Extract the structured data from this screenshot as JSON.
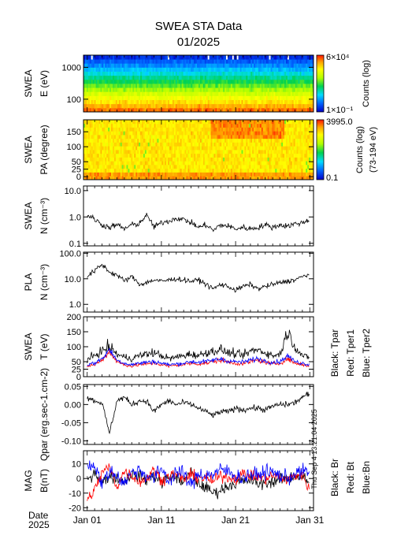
{
  "title": "SWEA STA Data",
  "subtitle": "01/2025",
  "timestamp": "Thu Sep  4 13:21:04 2025",
  "date_label": [
    "Date",
    "2025"
  ],
  "x_ticks": [
    {
      "day": 1,
      "label": "Jan 01"
    },
    {
      "day": 11,
      "label": "Jan 11"
    },
    {
      "day": 21,
      "label": "Jan 21"
    },
    {
      "day": 31,
      "label": "Jan 31"
    }
  ],
  "colorbar_energy": {
    "max_label": "6×10⁴",
    "min_label": "1×10⁻¹",
    "title": "Counts (log)"
  },
  "colorbar_pa": {
    "max_label": "3995.0",
    "min_label": "0.1",
    "title": "Counts (log)",
    "subtitle": "(73-194 eV)"
  },
  "legend_temp": [
    "Black: Tpar",
    "Red: Tper1",
    "Blue: Tper2"
  ],
  "legend_mag": [
    "Black: Br",
    "Red: Bt",
    "Blue:Bn"
  ],
  "colors": {
    "black": "#000000",
    "red": "#ff0000",
    "blue": "#0000ff"
  },
  "chart_data": [
    {
      "type": "heatmap",
      "ylabel": [
        "SWEA",
        "E (eV)"
      ],
      "yscale": "log",
      "ylim": [
        40,
        2400
      ],
      "y_ticks": [
        {
          "v": 100,
          "label": "100"
        },
        {
          "v": 1000,
          "label": "1000"
        }
      ],
      "xlim": [
        0.5,
        31.5
      ],
      "colorbar": "energy"
    },
    {
      "type": "heatmap",
      "ylabel": [
        "SWEA",
        "PA (degree)"
      ],
      "yscale": "linear",
      "ylim": [
        -10,
        190
      ],
      "y_ticks": [
        {
          "v": 0,
          "label": "0"
        },
        {
          "v": 25,
          "label": "25"
        },
        {
          "v": 50,
          "label": "50"
        },
        {
          "v": 100,
          "label": "100"
        },
        {
          "v": 150,
          "label": "150"
        }
      ],
      "xlim": [
        0.5,
        31.5
      ],
      "colorbar": "pa"
    },
    {
      "type": "line",
      "ylabel": [
        "SWEA",
        "N (cm⁻³)"
      ],
      "yscale": "log",
      "ylim": [
        0.08,
        15
      ],
      "y_ticks": [
        {
          "v": 0.1,
          "label": "0.1"
        },
        {
          "v": 1,
          "label": "1.0"
        },
        {
          "v": 10,
          "label": "10.0"
        }
      ],
      "xlim": [
        0.5,
        31.5
      ],
      "series": [
        {
          "color": "black",
          "x": [
            1,
            2,
            3,
            4,
            5,
            6,
            7,
            8,
            9,
            10,
            11,
            12,
            13,
            14,
            15,
            16,
            17,
            18,
            19,
            20,
            21,
            22,
            23,
            24,
            25,
            26,
            27,
            28,
            29,
            30,
            31
          ],
          "y": [
            1.2,
            0.8,
            0.5,
            0.4,
            0.5,
            0.35,
            0.5,
            0.55,
            1.1,
            0.4,
            0.6,
            0.7,
            0.9,
            0.8,
            0.6,
            0.4,
            0.5,
            0.3,
            0.5,
            0.45,
            0.35,
            0.4,
            0.35,
            0.4,
            0.5,
            0.4,
            0.5,
            0.45,
            0.55,
            0.6,
            0.8
          ],
          "noise": 0.25
        }
      ]
    },
    {
      "type": "line",
      "ylabel": [
        "PLA",
        "N (cm⁻³)"
      ],
      "yscale": "log",
      "ylim": [
        0.5,
        110
      ],
      "y_ticks": [
        {
          "v": 1,
          "label": "1.0"
        },
        {
          "v": 10,
          "label": "10.0"
        },
        {
          "v": 100,
          "label": "100.0"
        }
      ],
      "xlim": [
        0.5,
        31.5
      ],
      "series": [
        {
          "color": "black",
          "x": [
            1,
            2,
            3,
            4,
            5,
            6,
            7,
            8,
            9,
            10,
            11,
            12,
            13,
            14,
            15,
            16,
            17,
            18,
            19,
            20,
            21,
            22,
            23,
            24,
            25,
            26,
            27,
            28,
            29,
            30,
            31
          ],
          "y": [
            12,
            20,
            35,
            18,
            14,
            8,
            12,
            6,
            7,
            9,
            8,
            9,
            10,
            9,
            8,
            9,
            6,
            4,
            6,
            5,
            3.5,
            5,
            6,
            4,
            5,
            6,
            7,
            8,
            9,
            12,
            15
          ],
          "noise": 0.22
        }
      ]
    },
    {
      "type": "line",
      "ylabel": [
        "SWEA",
        "T (eV)"
      ],
      "yscale": "linear",
      "ylim": [
        0,
        200
      ],
      "y_ticks": [
        {
          "v": 0,
          "label": "0"
        },
        {
          "v": 25,
          "label": "25"
        },
        {
          "v": 50,
          "label": "50"
        },
        {
          "v": 100,
          "label": "100"
        },
        {
          "v": 150,
          "label": "150"
        },
        {
          "v": 200,
          "label": "200"
        }
      ],
      "xlim": [
        0.5,
        31.5
      ],
      "series": [
        {
          "color": "black",
          "x": [
            1,
            2,
            3,
            4,
            5,
            6,
            7,
            8,
            9,
            10,
            11,
            12,
            13,
            14,
            15,
            16,
            17,
            18,
            19,
            20,
            21,
            22,
            23,
            24,
            25,
            26,
            27,
            28,
            29,
            30,
            31
          ],
          "y": [
            55,
            70,
            85,
            100,
            75,
            65,
            60,
            70,
            75,
            80,
            70,
            60,
            65,
            70,
            75,
            70,
            80,
            85,
            90,
            80,
            75,
            70,
            85,
            90,
            80,
            70,
            75,
            150,
            100,
            70,
            60
          ],
          "noise": 0.18
        },
        {
          "color": "red",
          "x": [
            1,
            2,
            3,
            4,
            5,
            6,
            7,
            8,
            9,
            10,
            11,
            12,
            13,
            14,
            15,
            16,
            17,
            18,
            19,
            20,
            21,
            22,
            23,
            24,
            25,
            26,
            27,
            28,
            29,
            30,
            31
          ],
          "y": [
            35,
            40,
            55,
            85,
            50,
            40,
            35,
            40,
            42,
            45,
            40,
            35,
            38,
            40,
            45,
            42,
            45,
            50,
            55,
            48,
            45,
            42,
            50,
            55,
            48,
            42,
            45,
            60,
            45,
            40,
            35
          ],
          "noise": 0.15
        },
        {
          "color": "blue",
          "x": [
            1,
            2,
            3,
            4,
            5,
            6,
            7,
            8,
            9,
            10,
            11,
            12,
            13,
            14,
            15,
            16,
            17,
            18,
            19,
            20,
            21,
            22,
            23,
            24,
            25,
            26,
            27,
            28,
            29,
            30,
            31
          ],
          "y": [
            40,
            45,
            60,
            90,
            55,
            45,
            40,
            45,
            48,
            50,
            45,
            40,
            42,
            45,
            50,
            48,
            50,
            55,
            60,
            52,
            50,
            48,
            55,
            60,
            52,
            48,
            50,
            70,
            50,
            45,
            40
          ],
          "noise": 0.15
        }
      ]
    },
    {
      "type": "line",
      "ylabel": [
        "Qpar (erg.sec-1.cm-2)"
      ],
      "yscale": "linear",
      "ylim": [
        -0.11,
        0.055
      ],
      "y_ticks": [
        {
          "v": -0.1,
          "label": "-0.10"
        },
        {
          "v": -0.05,
          "label": "-0.05"
        },
        {
          "v": 0,
          "label": "0.00"
        },
        {
          "v": 0.05,
          "label": "0.05"
        }
      ],
      "xlim": [
        0.5,
        31.5
      ],
      "series": [
        {
          "color": "black",
          "x": [
            1,
            2,
            3,
            4,
            5,
            6,
            7,
            8,
            9,
            10,
            11,
            12,
            13,
            14,
            15,
            16,
            17,
            18,
            19,
            20,
            21,
            22,
            23,
            24,
            25,
            26,
            27,
            28,
            29,
            30,
            31
          ],
          "y": [
            0.02,
            0.01,
            0.005,
            -0.08,
            0.01,
            0.02,
            0.0,
            0.01,
            0.01,
            -0.02,
            0.0,
            0.01,
            0.0,
            0.005,
            0.0,
            -0.01,
            -0.02,
            -0.03,
            -0.02,
            -0.02,
            -0.01,
            -0.015,
            -0.01,
            -0.01,
            -0.015,
            -0.005,
            0.0,
            0.0,
            0.005,
            0.02,
            0.03
          ],
          "noise": 0.008,
          "additive": true
        }
      ]
    },
    {
      "type": "line",
      "ylabel": [
        "MAG",
        "B(nT)"
      ],
      "yscale": "linear",
      "ylim": [
        -22,
        19
      ],
      "y_ticks": [
        {
          "v": -20,
          "label": "-20"
        },
        {
          "v": -10,
          "label": "-10"
        },
        {
          "v": 0,
          "label": "0"
        },
        {
          "v": 10,
          "label": "10"
        }
      ],
      "xlim": [
        0.5,
        31.5
      ],
      "series": [
        {
          "color": "black",
          "x": [
            1,
            2,
            3,
            4,
            5,
            6,
            7,
            8,
            9,
            10,
            11,
            12,
            13,
            14,
            15,
            16,
            17,
            18,
            19,
            20,
            21,
            22,
            23,
            24,
            25,
            26,
            27,
            28,
            29,
            30,
            31
          ],
          "y": [
            -2,
            5,
            -3,
            2,
            0,
            -2,
            3,
            1,
            -1,
            2,
            -3,
            1,
            0,
            -2,
            4,
            -4,
            -6,
            -10,
            -8,
            -5,
            -3,
            -2,
            -1,
            -4,
            -3,
            -2,
            -1,
            0,
            2,
            1,
            -3
          ],
          "noise": 4,
          "additive": true
        },
        {
          "color": "red",
          "x": [
            1,
            2,
            3,
            4,
            5,
            6,
            7,
            8,
            9,
            10,
            11,
            12,
            13,
            14,
            15,
            16,
            17,
            18,
            19,
            20,
            21,
            22,
            23,
            24,
            25,
            26,
            27,
            28,
            29,
            30,
            31
          ],
          "y": [
            -15,
            -8,
            4,
            8,
            -6,
            5,
            2,
            -2,
            0,
            6,
            -1,
            2,
            3,
            -1,
            2,
            1,
            0,
            -2,
            2,
            1,
            0,
            3,
            2,
            1,
            0,
            2,
            1,
            -1,
            2,
            3,
            -8
          ],
          "noise": 4,
          "additive": true
        },
        {
          "color": "blue",
          "x": [
            1,
            2,
            3,
            4,
            5,
            6,
            7,
            8,
            9,
            10,
            11,
            12,
            13,
            14,
            15,
            16,
            17,
            18,
            19,
            20,
            21,
            22,
            23,
            24,
            25,
            26,
            27,
            28,
            29,
            30,
            31
          ],
          "y": [
            8,
            10,
            -4,
            5,
            2,
            -3,
            4,
            6,
            2,
            0,
            7,
            -2,
            5,
            3,
            -5,
            4,
            2,
            3,
            6,
            5,
            2,
            0,
            3,
            2,
            5,
            4,
            2,
            0,
            3,
            5,
            4
          ],
          "noise": 5,
          "additive": true
        }
      ]
    }
  ]
}
